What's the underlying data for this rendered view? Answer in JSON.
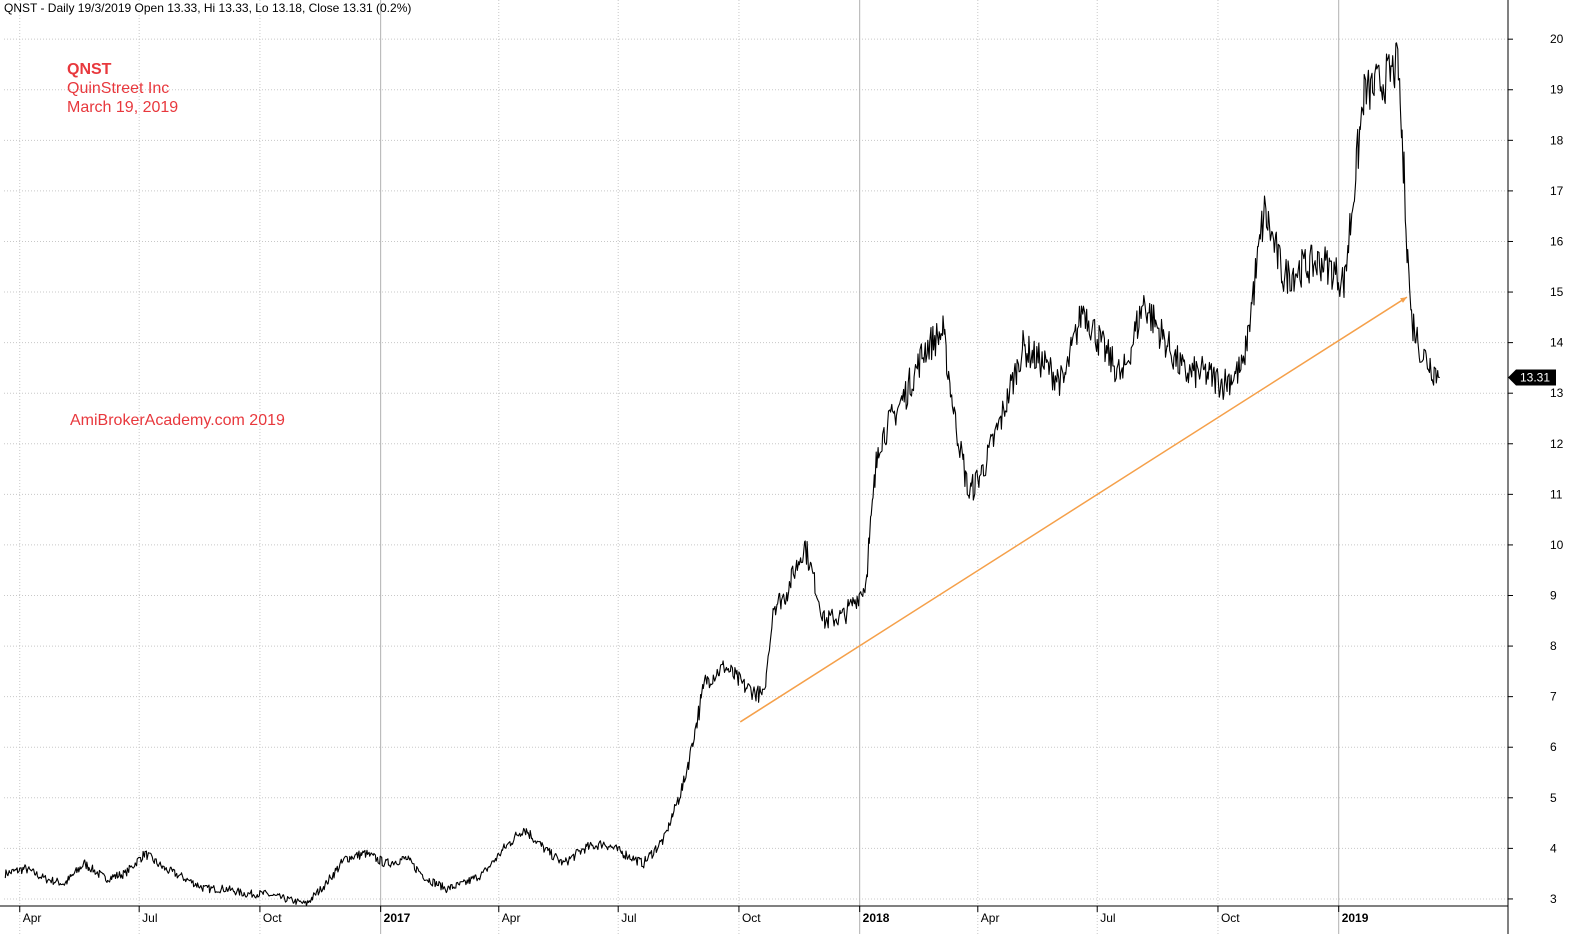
{
  "header": {
    "info": "QNST - Daily 19/3/2019 Open 13.33, Hi 13.33, Lo 13.18, Close 13.31 (0.2%)"
  },
  "annotations": {
    "symbol": "QNST",
    "company": "QuinStreet Inc",
    "date": "March 19, 2019",
    "watermark": "AmiBrokerAcademy.com  2019"
  },
  "colors": {
    "price": "#000000",
    "trendline": "#f5a04a",
    "annotation": "#e8383d",
    "grid": "#c8c8c8",
    "last_price_badge": "#000000"
  },
  "chart_data": {
    "type": "line",
    "title": "QNST - Daily 19/3/2019 Open 13.33, Hi 13.33, Lo 13.18, Close 13.31 (0.2%)",
    "xlabel": "",
    "ylabel": "",
    "ylim": [
      2.9,
      20.3
    ],
    "y_ticks": [
      3,
      4,
      5,
      6,
      7,
      8,
      9,
      10,
      11,
      12,
      13,
      14,
      15,
      16,
      17,
      18,
      19,
      20
    ],
    "x_ticks": [
      {
        "label": "Apr",
        "date": "2016-04-01",
        "bold": false
      },
      {
        "label": "Jul",
        "date": "2016-07-01",
        "bold": false
      },
      {
        "label": "Oct",
        "date": "2016-10-01",
        "bold": false
      },
      {
        "label": "2017",
        "date": "2017-01-01",
        "bold": true
      },
      {
        "label": "Apr",
        "date": "2017-04-01",
        "bold": false
      },
      {
        "label": "Jul",
        "date": "2017-07-01",
        "bold": false
      },
      {
        "label": "Oct",
        "date": "2017-10-01",
        "bold": false
      },
      {
        "label": "2018",
        "date": "2018-01-01",
        "bold": true
      },
      {
        "label": "Apr",
        "date": "2018-04-01",
        "bold": false
      },
      {
        "label": "Jul",
        "date": "2018-07-01",
        "bold": false
      },
      {
        "label": "Oct",
        "date": "2018-10-01",
        "bold": false
      },
      {
        "label": "2019",
        "date": "2019-01-01",
        "bold": true
      }
    ],
    "x_range": [
      "2016-03-20",
      "2019-05-10"
    ],
    "last_price": 13.31,
    "grid": true,
    "series": [
      {
        "x": [
          "2016-03-21",
          "2016-04-05",
          "2016-04-20",
          "2016-05-05",
          "2016-05-20",
          "2016-06-05",
          "2016-06-20",
          "2016-07-05",
          "2016-07-20",
          "2016-08-05",
          "2016-08-20",
          "2016-09-05",
          "2016-09-20",
          "2016-10-05",
          "2016-10-20",
          "2016-11-05",
          "2016-11-20",
          "2016-12-05",
          "2016-12-20",
          "2017-01-05",
          "2017-01-20",
          "2017-02-05",
          "2017-02-20",
          "2017-03-05",
          "2017-03-20",
          "2017-04-05",
          "2017-04-20",
          "2017-05-05",
          "2017-05-20",
          "2017-06-05",
          "2017-06-20",
          "2017-07-05",
          "2017-07-20",
          "2017-08-05",
          "2017-08-20",
          "2017-09-05",
          "2017-09-20",
          "2017-10-05",
          "2017-10-20",
          "2017-10-27",
          "2017-11-05",
          "2017-11-20",
          "2017-12-05",
          "2017-12-20",
          "2018-01-05",
          "2018-01-15",
          "2018-02-05",
          "2018-02-20",
          "2018-03-05",
          "2018-03-15",
          "2018-03-25",
          "2018-04-05",
          "2018-04-20",
          "2018-05-05",
          "2018-05-20",
          "2018-06-05",
          "2018-06-20",
          "2018-07-05",
          "2018-07-20",
          "2018-08-05",
          "2018-08-20",
          "2018-09-05",
          "2018-09-20",
          "2018-10-05",
          "2018-10-20",
          "2018-11-05",
          "2018-11-20",
          "2018-12-05",
          "2018-12-20",
          "2019-01-05",
          "2019-01-20",
          "2019-02-05",
          "2019-02-15",
          "2019-02-25",
          "2019-03-05",
          "2019-03-19"
        ],
        "values": [
          3.5,
          3.6,
          3.4,
          3.3,
          3.7,
          3.4,
          3.5,
          3.9,
          3.6,
          3.4,
          3.2,
          3.2,
          3.1,
          3.1,
          3.0,
          2.9,
          3.3,
          3.8,
          3.9,
          3.7,
          3.8,
          3.4,
          3.2,
          3.3,
          3.5,
          4.0,
          4.4,
          4.0,
          3.7,
          4.0,
          4.1,
          3.9,
          3.7,
          4.2,
          5.3,
          7.3,
          7.6,
          7.2,
          7.0,
          8.8,
          9.0,
          10.0,
          8.5,
          8.6,
          9.2,
          12.0,
          13.0,
          13.9,
          14.2,
          12.4,
          11.0,
          11.5,
          12.6,
          13.9,
          13.6,
          13.2,
          14.7,
          13.9,
          13.3,
          14.8,
          14.1,
          13.4,
          13.4,
          13.2,
          13.5,
          16.6,
          15.3,
          15.5,
          15.6,
          15.2,
          18.9,
          19.2,
          19.5,
          14.5,
          13.8,
          13.31
        ]
      },
      {
        "name": "",
        "kind": "trendline",
        "x": [
          "2017-10-02",
          "2019-02-22"
        ],
        "values": [
          6.5,
          14.9
        ]
      }
    ]
  }
}
